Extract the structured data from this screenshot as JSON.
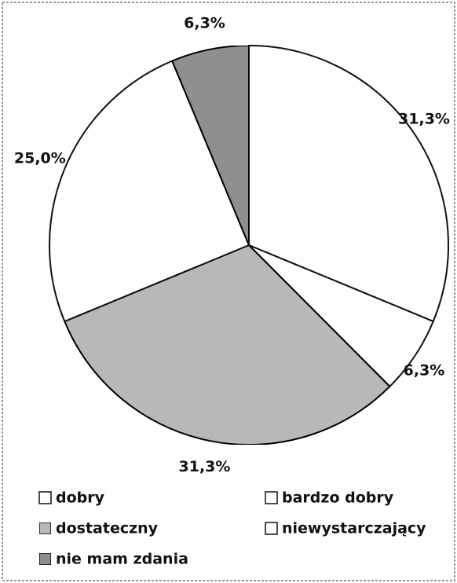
{
  "chart_data": {
    "type": "pie",
    "categories": [
      "dobry",
      "bardzo dobry",
      "dostateczny",
      "niewystarczający",
      "nie mam zdania"
    ],
    "values": [
      31.3,
      6.3,
      31.3,
      25.0,
      6.3
    ],
    "value_labels": [
      "31,3%",
      "6,3%",
      "31,3%",
      "25,0%",
      "6,3%"
    ],
    "colors": [
      "#ffffff",
      "#ffffff",
      "#c9c9c9",
      "#ffffff",
      "#9c9c9c"
    ]
  }
}
